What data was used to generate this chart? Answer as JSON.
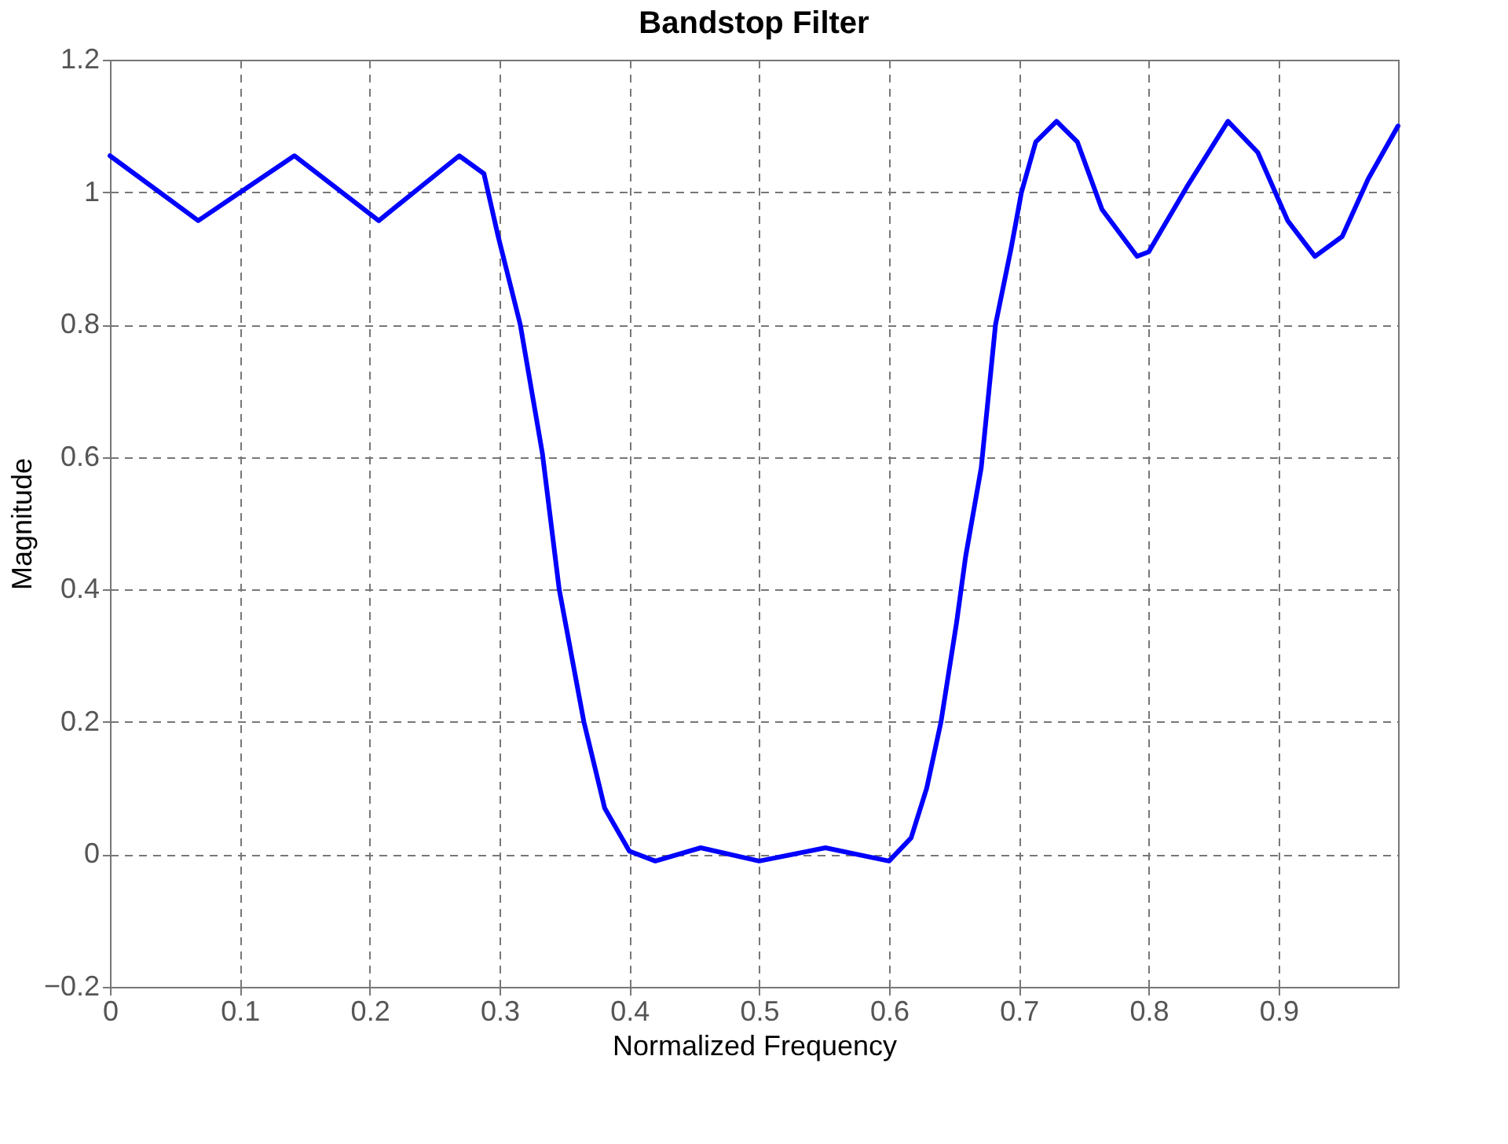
{
  "chart_data": {
    "type": "line",
    "title": "Bandstop Filter",
    "xlabel": "Normalized Frequency",
    "ylabel": "Magnitude",
    "x": [
      0,
      0.068,
      0.142,
      0.207,
      0.269,
      0.288,
      0.299,
      0.316,
      0.333,
      0.346,
      0.365,
      0.381,
      0.4,
      0.42,
      0.455,
      0.5,
      0.551,
      0.6,
      0.617,
      0.629,
      0.64,
      0.652,
      0.659,
      0.671,
      0.682,
      0.694,
      0.702,
      0.713,
      0.729,
      0.745,
      0.764,
      0.791,
      0.8,
      0.83,
      0.861,
      0.884,
      0.907,
      0.928,
      0.949,
      0.969,
      0.992
    ],
    "series": [
      {
        "color": "#0000ff",
        "values": [
          1.055,
          0.957,
          1.055,
          0.957,
          1.055,
          1.028,
          0.933,
          0.8,
          0.606,
          0.4,
          0.2,
          0.07,
          0.005,
          -0.01,
          0.01,
          -0.01,
          0.01,
          -0.01,
          0.025,
          0.1,
          0.2,
          0.35,
          0.45,
          0.584,
          0.8,
          0.915,
          1.0,
          1.076,
          1.107,
          1.076,
          0.974,
          0.903,
          0.91,
          1.01,
          1.107,
          1.06,
          0.957,
          0.903,
          0.933,
          1.02,
          1.1
        ]
      }
    ],
    "xlim": [
      0,
      0.992
    ],
    "xticks": [
      0,
      0.1,
      0.2,
      0.3,
      0.4,
      0.5,
      0.6,
      0.7,
      0.8,
      0.9
    ],
    "ylim": [
      -0.2,
      1.2
    ],
    "yticks": [
      -0.2,
      0,
      0.2,
      0.4,
      0.6,
      0.8,
      1,
      1.2
    ],
    "grid": true,
    "marker": "none",
    "line_style": "solid"
  }
}
